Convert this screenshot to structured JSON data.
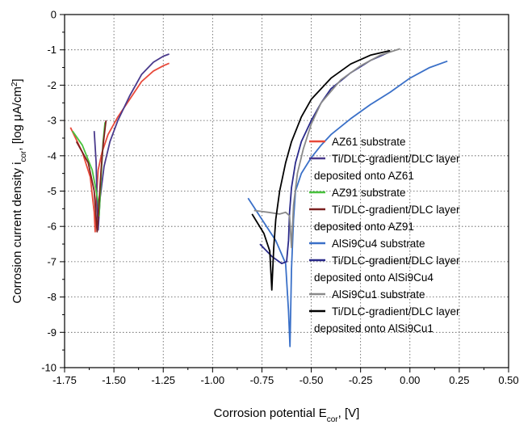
{
  "chart_data": {
    "type": "line",
    "xlabel": {
      "main": "Corrosion potential E",
      "sub": "cor",
      "tail": ", [V]"
    },
    "ylabel": {
      "main": "Corrosion current density i",
      "sub": "cor",
      "mid": ", [log μA/cm",
      "sup": "2",
      "tail": "]"
    },
    "xlim": [
      -1.75,
      0.5
    ],
    "ylim": [
      -10,
      0
    ],
    "xticks": [
      -1.75,
      -1.5,
      -1.25,
      -1.0,
      -0.75,
      -0.5,
      -0.25,
      0.0,
      0.25,
      0.5
    ],
    "xtick_labels": [
      "-1.75",
      "-1.50",
      "-1.25",
      "-1.00",
      "-0.75",
      "-0.50",
      "-0.25",
      "0.00",
      "0.25",
      "0.50"
    ],
    "yticks": [
      0,
      -1,
      -2,
      -3,
      -4,
      -5,
      -6,
      -7,
      -8,
      -9,
      -10
    ],
    "ytick_labels": [
      "0",
      "-1",
      "-2",
      "-3",
      "-4",
      "-5",
      "-6",
      "-7",
      "-8",
      "-9",
      "-10"
    ],
    "grid": true,
    "legend_position": "right",
    "series": [
      {
        "name": "AZ61 substrate",
        "color": "#e8493a",
        "x": [
          -1.72,
          -1.66,
          -1.62,
          -1.6,
          -1.595,
          -1.59,
          -1.58,
          -1.56,
          -1.53,
          -1.48,
          -1.42,
          -1.36,
          -1.3,
          -1.25,
          -1.22
        ],
        "y": [
          -3.2,
          -3.9,
          -4.6,
          -5.6,
          -6.15,
          -5.3,
          -4.4,
          -3.9,
          -3.4,
          -2.9,
          -2.4,
          -1.9,
          -1.6,
          -1.45,
          -1.38
        ]
      },
      {
        "name": "Ti/DLC-gradient/DLC layer deposited onto AZ61",
        "color": "#4a3a8c",
        "x": [
          -1.6,
          -1.59,
          -1.585,
          -1.58,
          -1.57,
          -1.55,
          -1.52,
          -1.48,
          -1.42,
          -1.36,
          -1.3,
          -1.25,
          -1.22
        ],
        "y": [
          -3.3,
          -4.2,
          -5.4,
          -6.1,
          -5.2,
          -4.3,
          -3.6,
          -3.0,
          -2.3,
          -1.7,
          -1.35,
          -1.18,
          -1.12
        ]
      },
      {
        "name": "AZ91 substrate",
        "color": "#49c23e",
        "x": [
          -1.71,
          -1.66,
          -1.61,
          -1.58,
          -1.575,
          -1.565,
          -1.555,
          -1.545
        ],
        "y": [
          -3.3,
          -3.7,
          -4.4,
          -5.3,
          -5.7,
          -4.6,
          -3.6,
          -3.05
        ]
      },
      {
        "name": "Ti/DLC-gradient/DLC layer deposited onto AZ91",
        "color": "#7a2020",
        "x": [
          -1.69,
          -1.63,
          -1.6,
          -1.585,
          -1.575,
          -1.565,
          -1.555,
          -1.54
        ],
        "y": [
          -3.6,
          -4.2,
          -5.0,
          -6.15,
          -5.3,
          -4.4,
          -3.7,
          -3.0
        ]
      },
      {
        "name": "AlSi9Cu4 substrate",
        "color": "#3a70c8",
        "x": [
          -0.82,
          -0.75,
          -0.68,
          -0.63,
          -0.615,
          -0.608,
          -0.6,
          -0.59,
          -0.58,
          -0.55,
          -0.5,
          -0.45,
          -0.4,
          -0.3,
          -0.2,
          -0.1,
          0.0,
          0.1,
          0.19
        ],
        "y": [
          -5.2,
          -5.8,
          -6.4,
          -7.05,
          -8.4,
          -9.4,
          -7.2,
          -5.8,
          -5.0,
          -4.5,
          -4.05,
          -3.7,
          -3.4,
          -2.95,
          -2.55,
          -2.2,
          -1.8,
          -1.5,
          -1.32
        ]
      },
      {
        "name": "Ti/DLC-gradient/DLC layer deposited onto AlSi9Cu4",
        "color": "#2a2a8a",
        "x": [
          -0.76,
          -0.7,
          -0.65,
          -0.625,
          -0.615,
          -0.61,
          -0.6,
          -0.58,
          -0.55,
          -0.5,
          -0.45,
          -0.4,
          -0.3,
          -0.2,
          -0.1
        ],
        "y": [
          -6.5,
          -6.85,
          -7.05,
          -7.0,
          -6.4,
          -5.6,
          -4.9,
          -4.2,
          -3.6,
          -3.0,
          -2.5,
          -2.1,
          -1.65,
          -1.3,
          -1.05
        ]
      },
      {
        "name": "AlSi9Cu1 substrate",
        "color": "#8a8a8a",
        "x": [
          -0.79,
          -0.72,
          -0.66,
          -0.63,
          -0.61,
          -0.6,
          -0.59,
          -0.57,
          -0.54,
          -0.5,
          -0.45,
          -0.35,
          -0.25,
          -0.15,
          -0.05
        ],
        "y": [
          -5.55,
          -5.6,
          -5.65,
          -5.6,
          -5.7,
          -6.6,
          -5.4,
          -4.5,
          -3.8,
          -3.1,
          -2.5,
          -1.85,
          -1.45,
          -1.15,
          -0.97
        ]
      },
      {
        "name": "Ti/DLC-gradient/DLC layer deposited onto AlSi9Cu1",
        "color": "#000000",
        "x": [
          -0.8,
          -0.74,
          -0.71,
          -0.7,
          -0.695,
          -0.69,
          -0.68,
          -0.66,
          -0.63,
          -0.6,
          -0.55,
          -0.5,
          -0.4,
          -0.3,
          -0.2,
          -0.1
        ],
        "y": [
          -5.65,
          -6.2,
          -6.7,
          -7.8,
          -7.2,
          -6.6,
          -5.8,
          -5.0,
          -4.2,
          -3.6,
          -2.9,
          -2.4,
          -1.8,
          -1.4,
          -1.15,
          -1.02
        ]
      }
    ],
    "legend_entries": [
      {
        "color": "#e8493a",
        "lines": [
          "AZ61 substrate"
        ]
      },
      {
        "color": "#4a3a8c",
        "lines": [
          "Ti/DLC-gradient/DLC layer",
          "deposited onto AZ61"
        ]
      },
      {
        "color": "#49c23e",
        "lines": [
          "AZ91 substrate"
        ]
      },
      {
        "color": "#7a2020",
        "lines": [
          "Ti/DLC-gradient/DLC layer",
          "deposited onto AZ91"
        ]
      },
      {
        "color": "#3a70c8",
        "lines": [
          "AlSi9Cu4 substrate"
        ]
      },
      {
        "color": "#2a2a8a",
        "lines": [
          "Ti/DLC-gradient/DLC layer",
          "deposited onto AlSi9Cu4"
        ]
      },
      {
        "color": "#8a8a8a",
        "lines": [
          "AlSi9Cu1 substrate"
        ]
      },
      {
        "color": "#000000",
        "lines": [
          "Ti/DLC-gradient/DLC layer",
          "deposited onto AlSi9Cu1"
        ]
      }
    ]
  }
}
